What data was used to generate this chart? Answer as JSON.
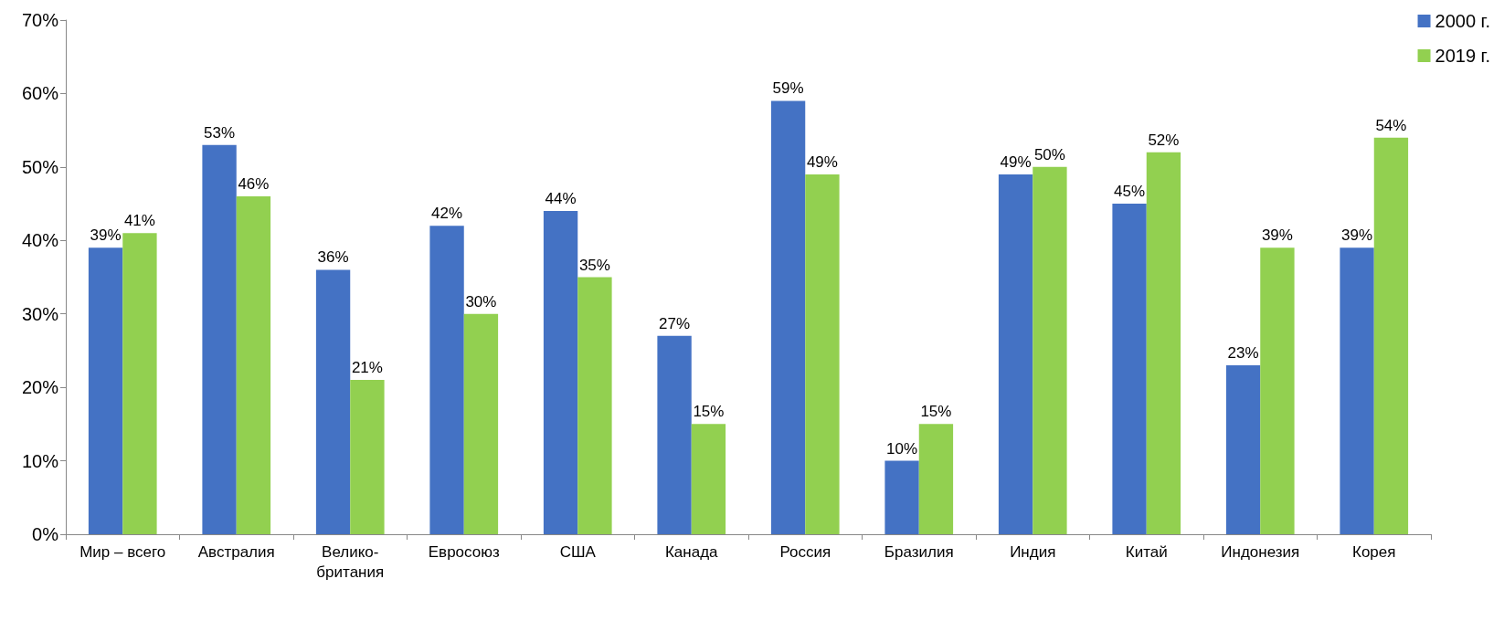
{
  "chart_data": {
    "type": "bar",
    "categories": [
      "Мир – всего",
      "Австралия",
      "Велико-\nбритания",
      "Евросоюз",
      "США",
      "Канада",
      "Россия",
      "Бразилия",
      "Индия",
      "Китай",
      "Индонезия",
      "Корея"
    ],
    "series": [
      {
        "name": "2000 г.",
        "color": "#4472c4",
        "values": [
          39,
          53,
          36,
          42,
          44,
          27,
          59,
          10,
          49,
          45,
          23,
          39
        ],
        "value_labels": [
          "39%",
          "53%",
          "36%",
          "42%",
          "44%",
          "27%",
          "59%",
          "10%",
          "49%",
          "45%",
          "23%",
          "39%"
        ]
      },
      {
        "name": "2019 г.",
        "color": "#92d050",
        "values": [
          41,
          46,
          21,
          30,
          35,
          15,
          49,
          15,
          50,
          52,
          39,
          54
        ],
        "value_labels": [
          "41%",
          "46%",
          "21%",
          "30%",
          "35%",
          "15%",
          "49%",
          "15%",
          "50%",
          "52%",
          "39%",
          "54%"
        ]
      }
    ],
    "ylim": [
      0,
      70
    ],
    "yticks": [
      {
        "value": 0,
        "label": "0%"
      },
      {
        "value": 10,
        "label": "10%"
      },
      {
        "value": 20,
        "label": "20%"
      },
      {
        "value": 30,
        "label": "30%"
      },
      {
        "value": 40,
        "label": "40%"
      },
      {
        "value": 50,
        "label": "50%"
      },
      {
        "value": 60,
        "label": "60%"
      },
      {
        "value": 70,
        "label": "70%"
      }
    ],
    "grid": false,
    "legend": "top right"
  }
}
